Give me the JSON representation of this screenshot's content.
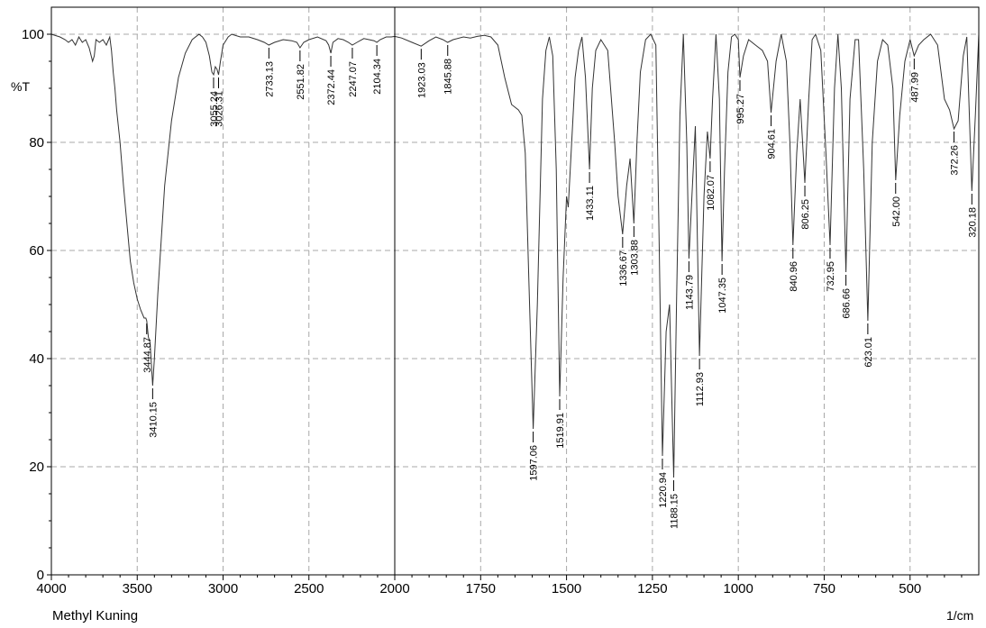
{
  "chart_data": {
    "type": "line",
    "title": "",
    "sample_name": "Methyl Kuning",
    "ylabel": "%T",
    "xlabel": "1/cm",
    "ylim": [
      0,
      105
    ],
    "grid": true,
    "x_axis": {
      "split_break": 2000,
      "high_range": [
        4000,
        2000
      ],
      "low_range": [
        2000,
        300
      ],
      "ticks": [
        4000,
        3500,
        3000,
        2500,
        2000,
        1750,
        1500,
        1250,
        1000,
        750,
        500
      ]
    },
    "y_ticks": [
      0,
      20,
      40,
      60,
      80,
      100
    ],
    "peaks": [
      {
        "label": "3444.87",
        "x": 3444.87,
        "y": 47
      },
      {
        "label": "3410.15",
        "x": 3410.15,
        "y": 35
      },
      {
        "label": "3055.24",
        "x": 3055.24,
        "y": 92.5
      },
      {
        "label": "3026.31",
        "x": 3026.31,
        "y": 92.5
      },
      {
        "label": "2733.13",
        "x": 2733.13,
        "y": 98
      },
      {
        "label": "2551.82",
        "x": 2551.82,
        "y": 97.5
      },
      {
        "label": "2372.44",
        "x": 2372.44,
        "y": 96.5
      },
      {
        "label": "2247.07",
        "x": 2247.07,
        "y": 98
      },
      {
        "label": "2104.34",
        "x": 2104.34,
        "y": 98.5
      },
      {
        "label": "1923.03",
        "x": 1923.03,
        "y": 97.8
      },
      {
        "label": "1845.88",
        "x": 1845.88,
        "y": 98.5
      },
      {
        "label": "1597.06",
        "x": 1597.06,
        "y": 27
      },
      {
        "label": "1519.91",
        "x": 1519.91,
        "y": 33
      },
      {
        "label": "1433.11",
        "x": 1433.11,
        "y": 75
      },
      {
        "label": "1336.67",
        "x": 1336.67,
        "y": 63
      },
      {
        "label": "1303.88",
        "x": 1303.88,
        "y": 65
      },
      {
        "label": "1220.94",
        "x": 1220.94,
        "y": 22
      },
      {
        "label": "1188.15",
        "x": 1188.15,
        "y": 18
      },
      {
        "label": "1143.79",
        "x": 1143.79,
        "y": 58.5
      },
      {
        "label": "1112.93",
        "x": 1112.93,
        "y": 40.5
      },
      {
        "label": "1082.07",
        "x": 1082.07,
        "y": 77
      },
      {
        "label": "1047.35",
        "x": 1047.35,
        "y": 58
      },
      {
        "label": "995.27",
        "x": 995.27,
        "y": 92
      },
      {
        "label": "904.61",
        "x": 904.61,
        "y": 85.5
      },
      {
        "label": "840.96",
        "x": 840.96,
        "y": 61
      },
      {
        "label": "806.25",
        "x": 806.25,
        "y": 72.5
      },
      {
        "label": "732.95",
        "x": 732.95,
        "y": 61
      },
      {
        "label": "686.66",
        "x": 686.66,
        "y": 56
      },
      {
        "label": "623.01",
        "x": 623.01,
        "y": 47
      },
      {
        "label": "542.00",
        "x": 542.0,
        "y": 73
      },
      {
        "label": "487.99",
        "x": 487.99,
        "y": 96
      },
      {
        "label": "372.26",
        "x": 372.26,
        "y": 82.5
      },
      {
        "label": "320.18",
        "x": 320.18,
        "y": 71
      }
    ],
    "series": [
      {
        "x": [
          4000,
          3950,
          3920,
          3900,
          3880,
          3860,
          3840,
          3820,
          3800,
          3780,
          3760,
          3750,
          3740,
          3720,
          3700,
          3680,
          3660,
          3650,
          3640,
          3630,
          3620,
          3600,
          3580,
          3560,
          3540,
          3520,
          3500,
          3480,
          3460,
          3450,
          3444.87,
          3435,
          3425,
          3410.15,
          3400,
          3380,
          3360,
          3340,
          3300,
          3260,
          3220,
          3180,
          3140,
          3120,
          3100,
          3080,
          3065,
          3055.24,
          3045,
          3035,
          3026.31,
          3015,
          3000,
          2970,
          2950,
          2900,
          2850,
          2800,
          2760,
          2733.13,
          2700,
          2650,
          2600,
          2570,
          2551.82,
          2530,
          2500,
          2450,
          2400,
          2385,
          2372.44,
          2360,
          2330,
          2300,
          2270,
          2247.07,
          2220,
          2180,
          2150,
          2120,
          2104.34,
          2085,
          2050,
          2020,
          2000,
          1980,
          1950,
          1923.03,
          1900,
          1880,
          1860,
          1845.88,
          1830,
          1800,
          1780,
          1760,
          1740,
          1720,
          1700,
          1680,
          1660,
          1650,
          1640,
          1630,
          1620,
          1610,
          1597.06,
          1585,
          1570,
          1560,
          1550,
          1540,
          1530,
          1519.91,
          1510,
          1500,
          1495,
          1485,
          1475,
          1465,
          1455,
          1445,
          1433.11,
          1425,
          1415,
          1400,
          1380,
          1360,
          1350,
          1336.67,
          1325,
          1315,
          1303.88,
          1295,
          1285,
          1270,
          1255,
          1240,
          1230,
          1220.94,
          1210,
          1200,
          1188.15,
          1180,
          1170,
          1160,
          1150,
          1143.79,
          1135,
          1125,
          1112.93,
          1100,
          1090,
          1082.07,
          1075,
          1065,
          1055,
          1047.35,
          1040,
          1030,
          1020,
          1010,
          1000,
          995.27,
          985,
          970,
          950,
          930,
          915,
          904.61,
          890,
          875,
          860,
          850,
          840.96,
          830,
          820,
          806.25,
          795,
          785,
          775,
          760,
          745,
          732.95,
          720,
          710,
          700,
          686.66,
          675,
          660,
          650,
          635,
          623.01,
          610,
          595,
          580,
          565,
          550,
          542.0,
          530,
          515,
          500,
          487.99,
          475,
          460,
          440,
          420,
          400,
          385,
          372.26,
          360,
          345,
          335,
          320.18,
          310,
          300
        ],
        "y": [
          100,
          99.5,
          99,
          98.5,
          99,
          98,
          99.5,
          98.5,
          99,
          97.5,
          95,
          96,
          99,
          98.5,
          99,
          98,
          99.5,
          97,
          93,
          90,
          86,
          80,
          72,
          65,
          58,
          54,
          51,
          49,
          47.5,
          47.5,
          47,
          44,
          43,
          35,
          40,
          52,
          62,
          72,
          84,
          92,
          96.5,
          99,
          100,
          99.5,
          98.5,
          96,
          93,
          92.5,
          94,
          93.5,
          92.5,
          95,
          98,
          99.5,
          100,
          99.5,
          99.5,
          99,
          98.5,
          98,
          98.5,
          99,
          98.8,
          98.5,
          97.5,
          98.5,
          99,
          99.5,
          98.8,
          98,
          96.5,
          98.5,
          99.2,
          99,
          98.5,
          98,
          98.5,
          99.2,
          99,
          98.8,
          98.5,
          99,
          99.5,
          99.5,
          99.6,
          99.3,
          98.5,
          97.8,
          98.8,
          99.5,
          99,
          98.5,
          99,
          99.5,
          99.3,
          99.6,
          99.8,
          99.5,
          98,
          92,
          87,
          86.5,
          86,
          85,
          78,
          55,
          27,
          50,
          88,
          97,
          99.5,
          96,
          75,
          33,
          55,
          70,
          68,
          80,
          92,
          97,
          99.5,
          92,
          75,
          90,
          97,
          99,
          97,
          80,
          70,
          63,
          72,
          77,
          65,
          80,
          93,
          99,
          100,
          98,
          60,
          22,
          45,
          50,
          18,
          50,
          85,
          100,
          80,
          58.5,
          70,
          83,
          40.5,
          70,
          82,
          77,
          88,
          100,
          88,
          58,
          75,
          93,
          99.5,
          100,
          99,
          92,
          96,
          99,
          98,
          97,
          95,
          85.5,
          95,
          100,
          95,
          80,
          61,
          78,
          88,
          72.5,
          88,
          99,
          100,
          97,
          78,
          61,
          90,
          100,
          90,
          56,
          88,
          99,
          99,
          75,
          47,
          80,
          95,
          99,
          98,
          90,
          73,
          85,
          95,
          99,
          96,
          98,
          99,
          100,
          98,
          88,
          86,
          82.5,
          84,
          96,
          99.5,
          71,
          85,
          100
        ]
      }
    ]
  }
}
